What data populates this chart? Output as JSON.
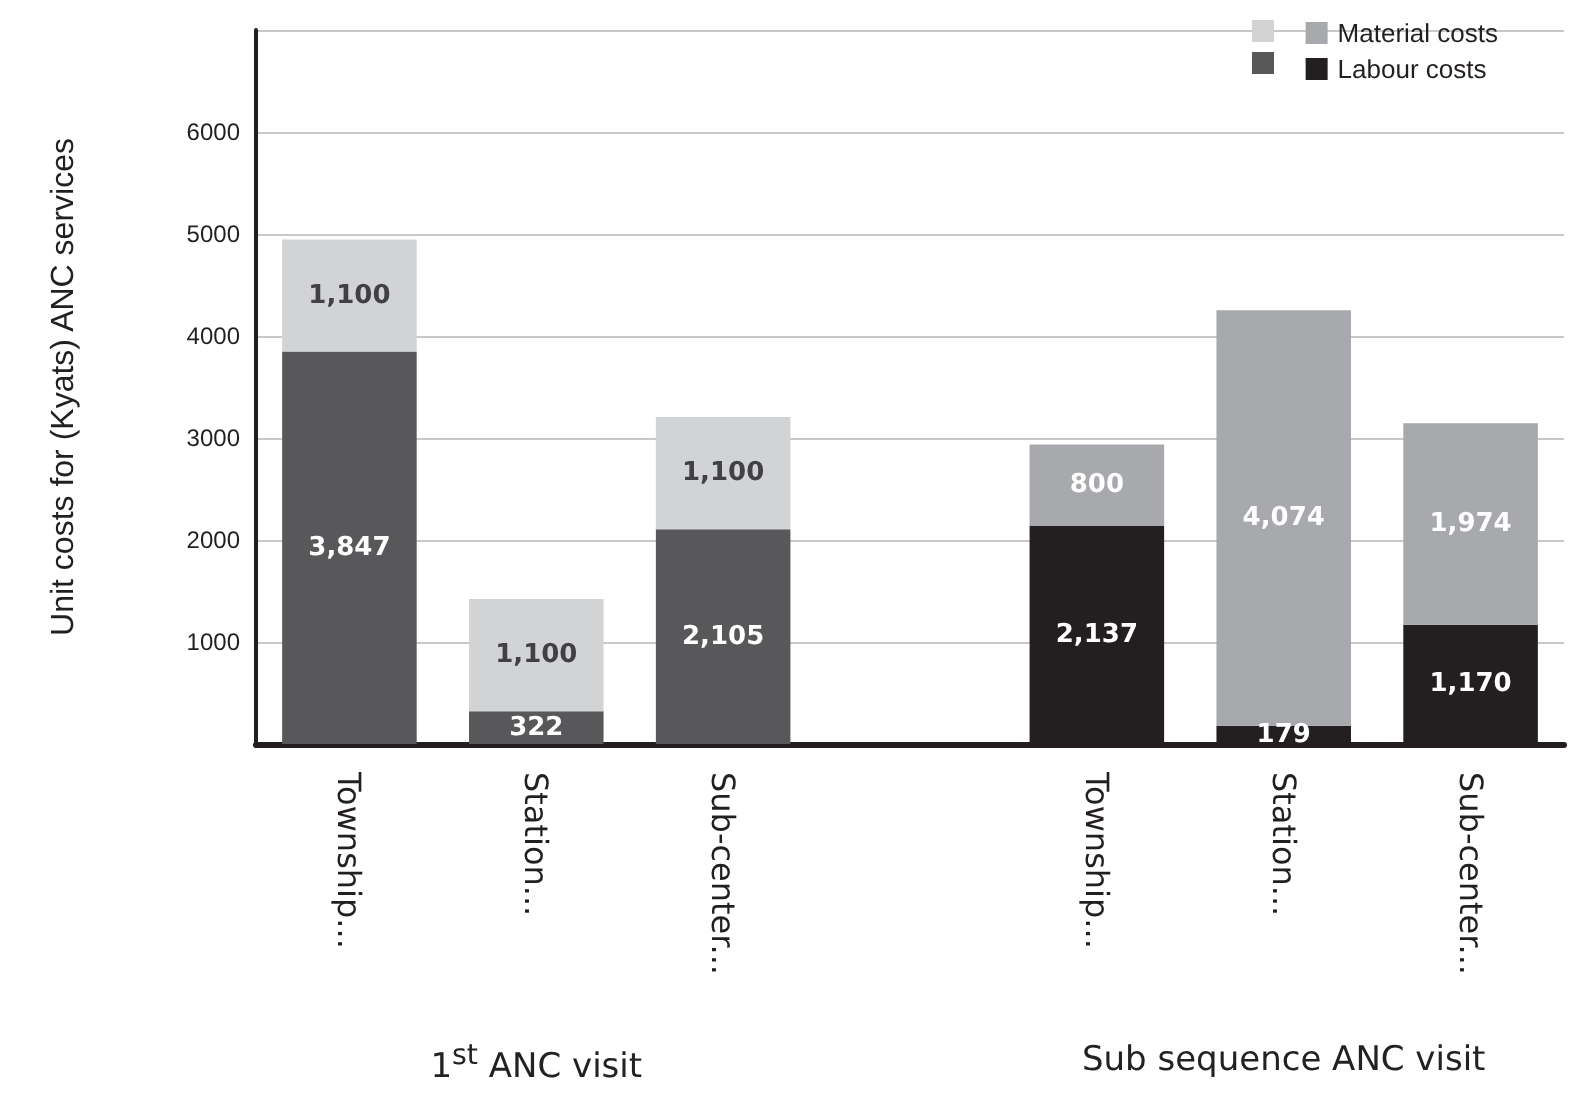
{
  "chart_data": {
    "type": "bar",
    "stacked": true,
    "ylabel": "Unit costs for (Kyats) ANC services",
    "categories": [
      "Township...",
      "Station...",
      "Sub-center...",
      null,
      "Township...",
      "Station...",
      "Sub-center..."
    ],
    "series": [
      {
        "name": "Labour costs",
        "color": "#231f20",
        "colors": [
          "#58585a",
          "#58585a",
          "#58585a",
          null,
          "#231f20",
          "#231f20",
          "#231f20"
        ],
        "values": [
          3847,
          322,
          2105,
          null,
          2137,
          179,
          1170
        ],
        "value_labels": [
          "3,847",
          "322",
          "2,105",
          null,
          "2,137",
          "179",
          "1,170"
        ]
      },
      {
        "name": "Material costs",
        "color": "#a7a9ac",
        "colors": [
          "#d1d3d4",
          "#d1d3d4",
          "#d1d3d4",
          null,
          "#a7a9ac",
          "#a7a9ac",
          "#a7a9ac"
        ],
        "values": [
          1100,
          1100,
          1100,
          null,
          800,
          4074,
          1974
        ],
        "value_labels": [
          "1,100",
          "1,100",
          "1,100",
          null,
          "800",
          "4,074",
          "1,974"
        ]
      }
    ],
    "ylim": [
      0,
      7000
    ],
    "yticks": [
      1000,
      2000,
      3000,
      4000,
      5000,
      6000
    ],
    "grid": "y",
    "legend": "top right",
    "annotations": [
      "1$^{st}$ ANC visit",
      "Sub sequence ANC visit"
    ]
  }
}
